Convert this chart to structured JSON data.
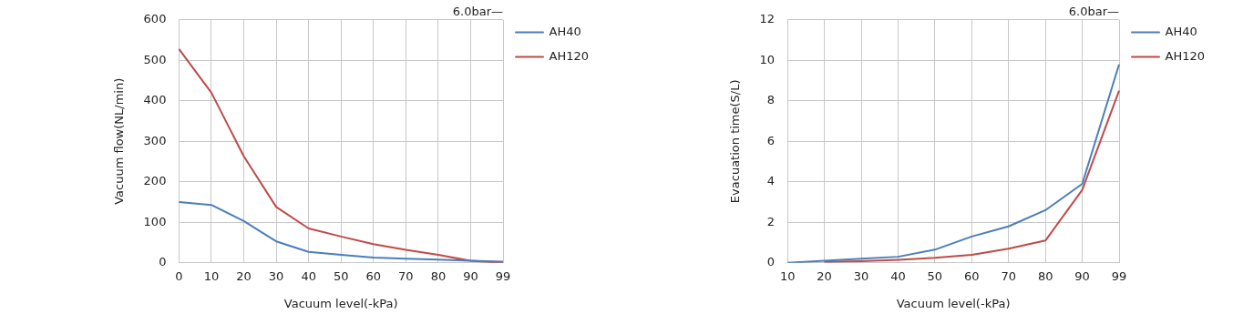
{
  "chart_data": [
    {
      "type": "line",
      "xlabel": "Vacuum level(-kPa)",
      "ylabel": "Vacuum flow(NL/min)",
      "legend_title": "6.0bar—",
      "legend": "right",
      "grid": true,
      "marker": "none",
      "line_style": "solid",
      "categories": [
        "0",
        "10",
        "20",
        "30",
        "40",
        "50",
        "60",
        "70",
        "80",
        "90",
        "99"
      ],
      "ylim": [
        0,
        600
      ],
      "yticks": [
        0,
        100,
        200,
        300,
        400,
        500,
        600
      ],
      "series": [
        {
          "name": "AH40",
          "color": "#4a7ebb",
          "values": [
            150,
            143,
            103,
            53,
            27,
            20,
            13,
            10,
            8,
            5,
            3
          ]
        },
        {
          "name": "AH120",
          "color": "#be4b48",
          "values": [
            528,
            420,
            263,
            138,
            85,
            65,
            46,
            32,
            20,
            5,
            0
          ]
        }
      ]
    },
    {
      "type": "line",
      "xlabel": "Vacuum level(-kPa)",
      "ylabel": "Evacuation time(S/L)",
      "legend_title": "6.0bar—",
      "legend": "right",
      "grid": true,
      "marker": "none",
      "line_style": "solid",
      "categories": [
        "10",
        "20",
        "30",
        "40",
        "50",
        "60",
        "70",
        "80",
        "90",
        "99"
      ],
      "ylim": [
        0,
        12
      ],
      "yticks": [
        0,
        2,
        4,
        6,
        8,
        10,
        12
      ],
      "series": [
        {
          "name": "AH40",
          "color": "#4a7ebb",
          "values": [
            0,
            0.1,
            0.2,
            0.3,
            0.65,
            1.3,
            1.8,
            2.6,
            3.9,
            9.8
          ]
        },
        {
          "name": "AH120",
          "color": "#be4b48",
          "values": [
            null,
            0.05,
            0.08,
            0.15,
            0.25,
            0.4,
            0.7,
            1.1,
            3.6,
            8.5
          ]
        }
      ]
    }
  ]
}
